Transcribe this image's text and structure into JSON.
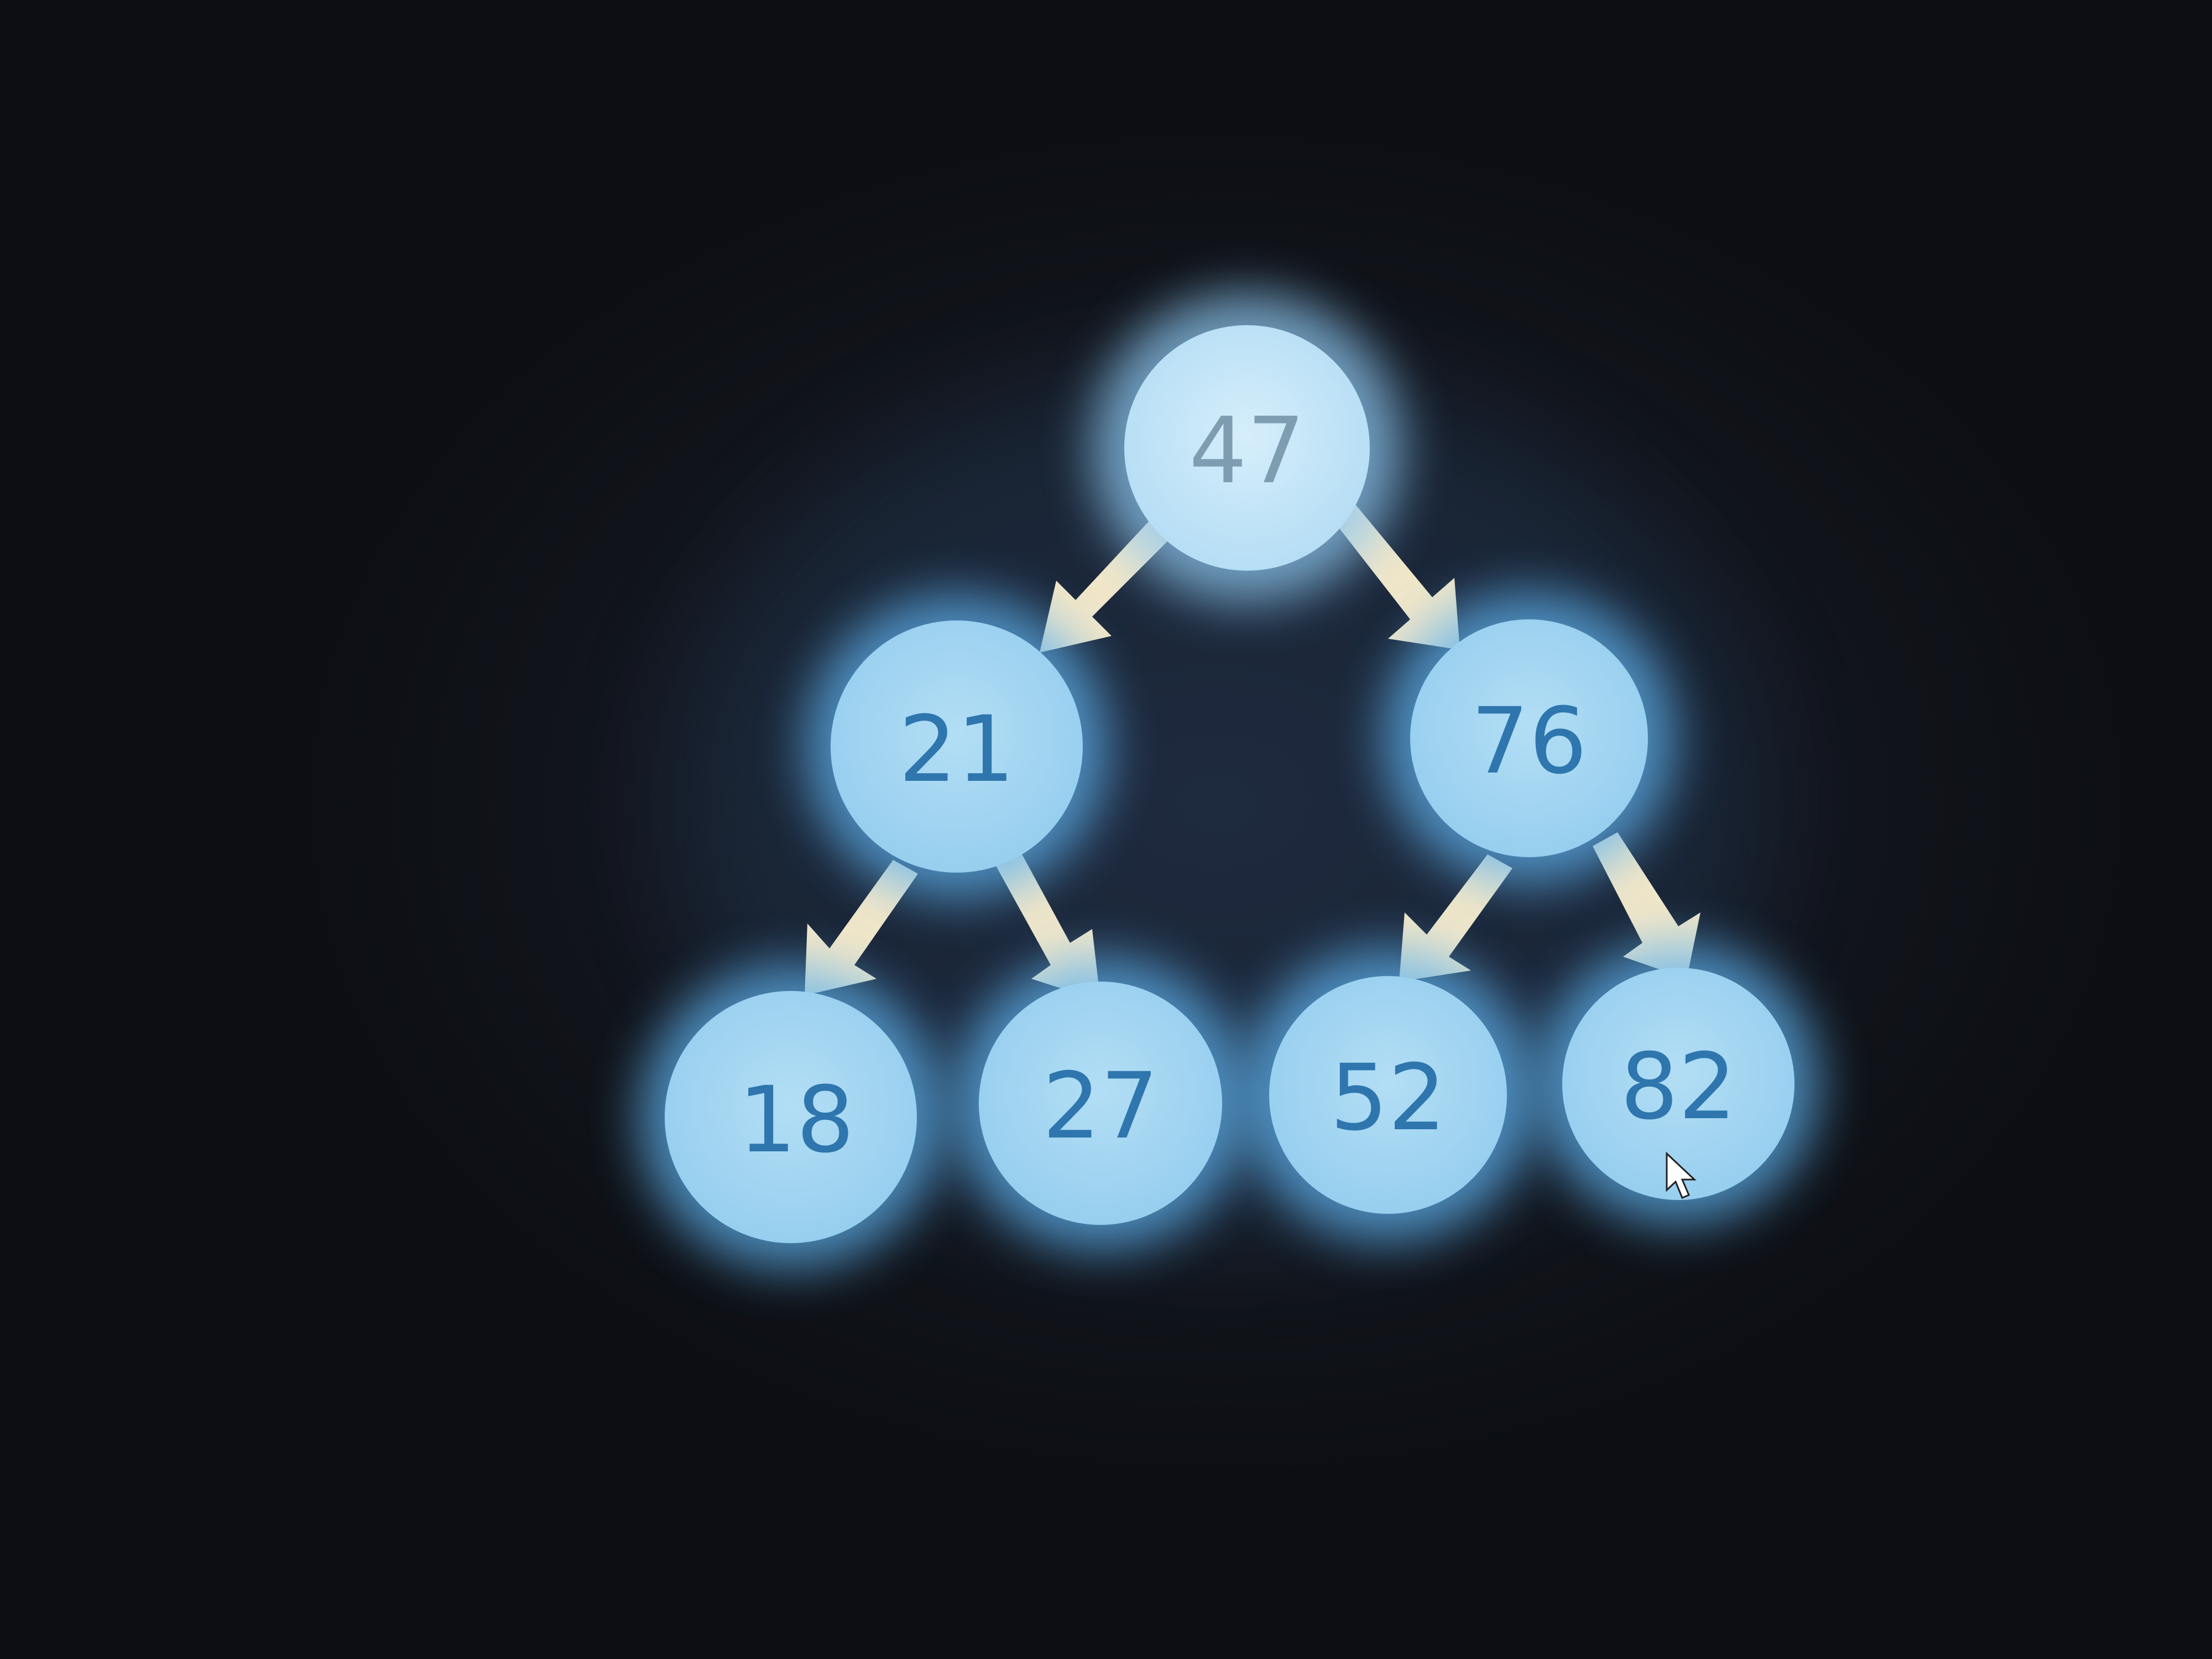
{
  "tree": {
    "root": {
      "value": "47"
    },
    "level1": [
      {
        "value": "21"
      },
      {
        "value": "76"
      }
    ],
    "level2": [
      {
        "value": "18"
      },
      {
        "value": "27"
      },
      {
        "value": "52"
      },
      {
        "value": "82"
      }
    ]
  },
  "colors": {
    "background": "#111318",
    "node_fill": "#9fd4f2",
    "node_glow": "#5fb2ee",
    "root_text": "#7f9db0",
    "child_text": "#2e76ad",
    "arrow": "#f1e6c8"
  },
  "cursor": {
    "icon": "mouse-pointer-icon"
  }
}
